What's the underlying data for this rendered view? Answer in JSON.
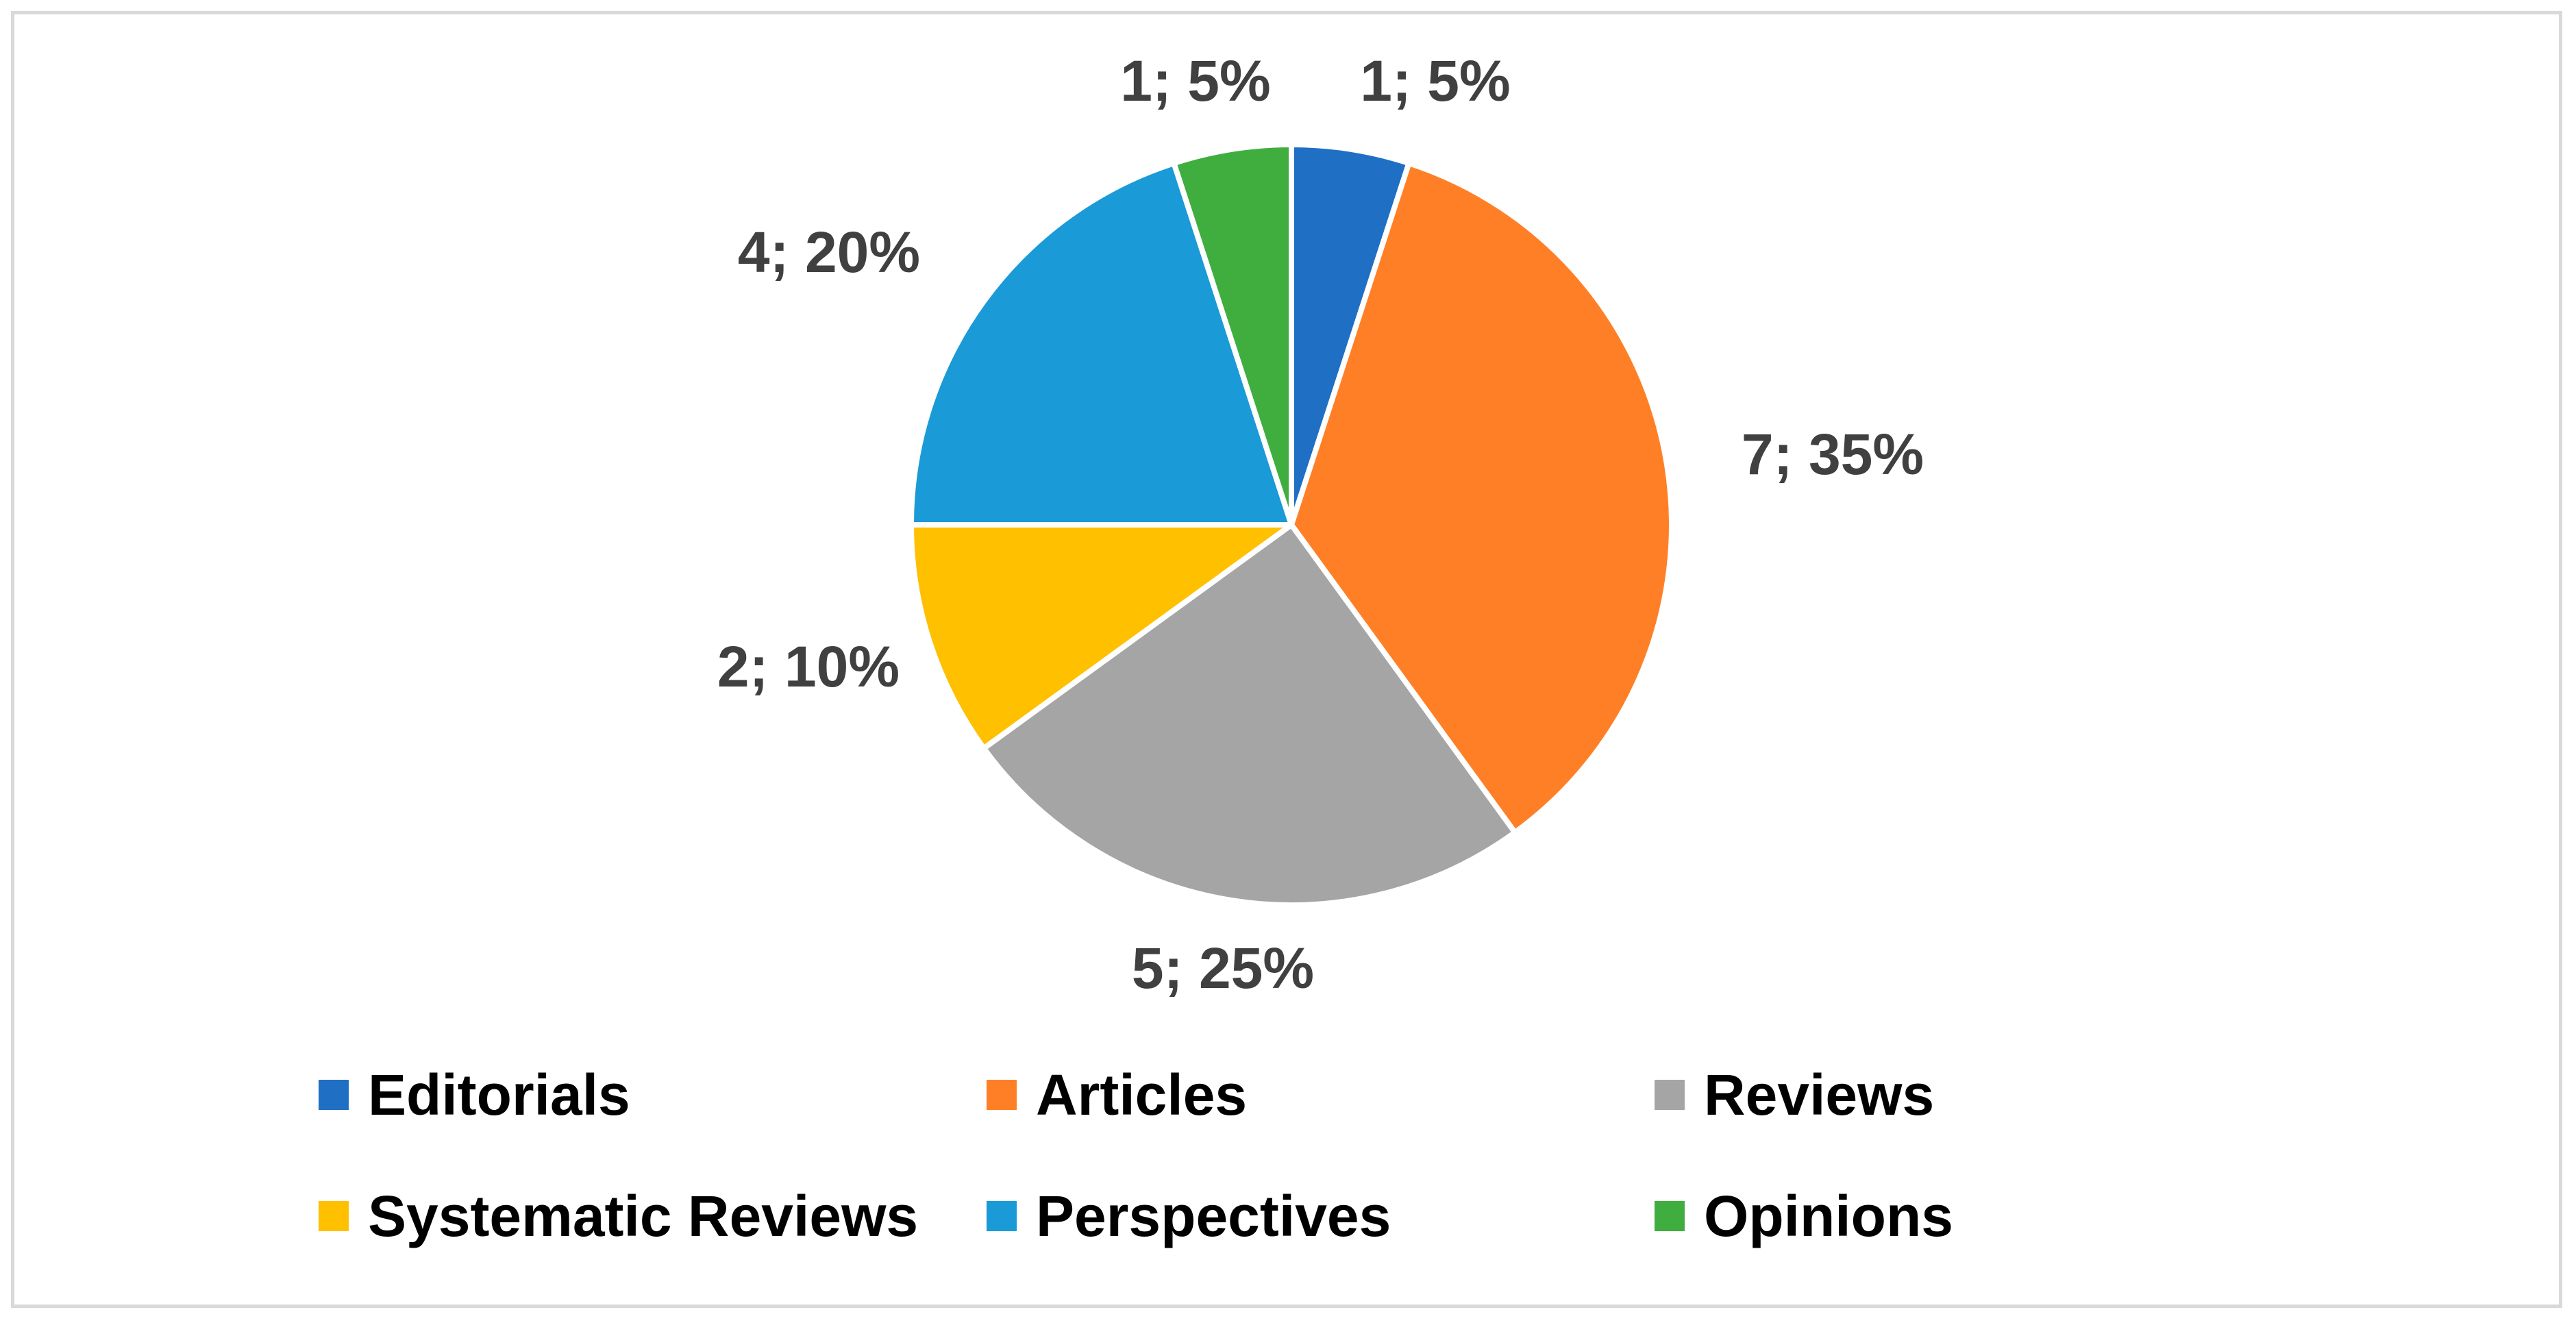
{
  "chart_data": {
    "type": "pie",
    "title": "",
    "categories": [
      "Editorials",
      "Articles",
      "Reviews",
      "Systematic Reviews",
      "Perspectives",
      "Opinions"
    ],
    "values": [
      1,
      7,
      5,
      2,
      4,
      1
    ],
    "percentages": [
      5,
      35,
      25,
      10,
      20,
      5
    ],
    "data_labels": [
      "1; 5%",
      "7; 35%",
      "5; 25%",
      "2; 10%",
      "4; 20%",
      "1; 5%"
    ],
    "colors": [
      "#1f6fc5",
      "#ff7f27",
      "#a5a5a5",
      "#ffc000",
      "#1a9ad6",
      "#3fae3f"
    ],
    "legend_position": "bottom",
    "start_angle": "12 o'clock, clockwise"
  }
}
